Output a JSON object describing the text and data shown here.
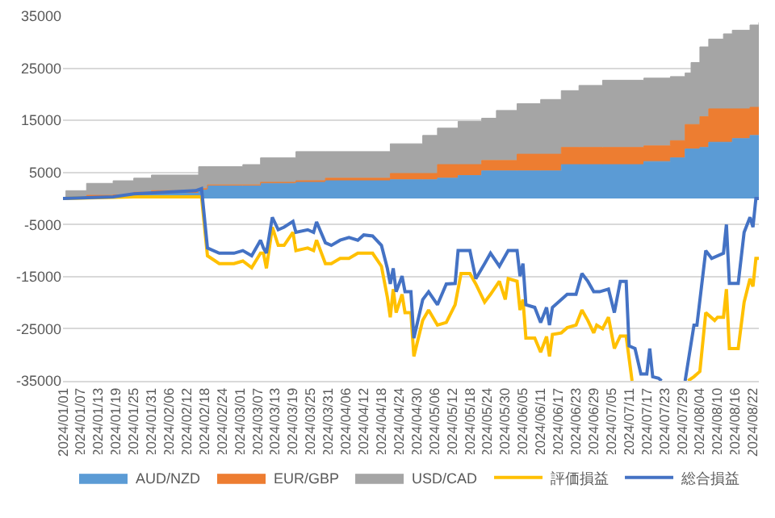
{
  "chart_data": {
    "type": "area",
    "stacked": true,
    "grid": "y",
    "legend": "bottom",
    "marker": "none",
    "line_style": "solid",
    "ylim": [
      -35000,
      35000
    ],
    "yticks": [
      -35000,
      -25000,
      -15000,
      -5000,
      5000,
      15000,
      25000,
      35000
    ],
    "xlim": [
      "2024-01-01",
      "2024-08-24"
    ],
    "xticks": [
      {
        "value": "2024-01-01",
        "label": "2024/01/01"
      },
      {
        "value": "2024-01-07",
        "label": "2024/01/07"
      },
      {
        "value": "2024-01-13",
        "label": "2024/01/13"
      },
      {
        "value": "2024-01-19",
        "label": "2024/01/19"
      },
      {
        "value": "2024-01-25",
        "label": "2024/01/25"
      },
      {
        "value": "2024-01-31",
        "label": "2024/01/31"
      },
      {
        "value": "2024-02-06",
        "label": "2024/02/06"
      },
      {
        "value": "2024-02-12",
        "label": "2024/02/12"
      },
      {
        "value": "2024-02-18",
        "label": "2024/02/18"
      },
      {
        "value": "2024-02-24",
        "label": "2024/02/24"
      },
      {
        "value": "2024-03-01",
        "label": "2024/03/01"
      },
      {
        "value": "2024-03-07",
        "label": "2024/03/07"
      },
      {
        "value": "2024-03-13",
        "label": "2024/03/13"
      },
      {
        "value": "2024-03-19",
        "label": "2024/03/19"
      },
      {
        "value": "2024-03-25",
        "label": "2024/03/25"
      },
      {
        "value": "2024-03-31",
        "label": "2024/03/31"
      },
      {
        "value": "2024-04-06",
        "label": "2024/04/06"
      },
      {
        "value": "2024-04-12",
        "label": "2024/04/12"
      },
      {
        "value": "2024-04-18",
        "label": "2024/04/18"
      },
      {
        "value": "2024-04-24",
        "label": "2024/04/24"
      },
      {
        "value": "2024-04-30",
        "label": "2024/04/30"
      },
      {
        "value": "2024-05-06",
        "label": "2024/05/06"
      },
      {
        "value": "2024-05-12",
        "label": "2024/05/12"
      },
      {
        "value": "2024-05-18",
        "label": "2024/05/18"
      },
      {
        "value": "2024-05-24",
        "label": "2024/05/24"
      },
      {
        "value": "2024-05-30",
        "label": "2024/05/30"
      },
      {
        "value": "2024-06-05",
        "label": "2024/06/05"
      },
      {
        "value": "2024-06-11",
        "label": "2024/06/11"
      },
      {
        "value": "2024-06-17",
        "label": "2024/06/17"
      },
      {
        "value": "2024-06-23",
        "label": "2024/06/23"
      },
      {
        "value": "2024-06-29",
        "label": "2024/06/29"
      },
      {
        "value": "2024-07-05",
        "label": "2024/07/05"
      },
      {
        "value": "2024-07-11",
        "label": "2024/07/11"
      },
      {
        "value": "2024-07-17",
        "label": "2024/07/17"
      },
      {
        "value": "2024-07-23",
        "label": "2024/07/23"
      },
      {
        "value": "2024-07-29",
        "label": "2024/07/29"
      },
      {
        "value": "2024-08-04",
        "label": "2024/08/04"
      },
      {
        "value": "2024-08-10",
        "label": "2024/08/10"
      },
      {
        "value": "2024-08-16",
        "label": "2024/08/16"
      },
      {
        "value": "2024-08-22",
        "label": "2024/08/22"
      }
    ],
    "x": [
      "2024-01-01",
      "2024-01-02",
      "2024-01-09",
      "2024-01-18",
      "2024-01-25",
      "2024-01-31",
      "2024-02-16",
      "2024-02-19",
      "2024-03-02",
      "2024-03-08",
      "2024-03-20",
      "2024-03-30",
      "2024-04-21",
      "2024-05-02",
      "2024-05-07",
      "2024-05-14",
      "2024-05-22",
      "2024-05-27",
      "2024-06-03",
      "2024-06-11",
      "2024-06-18",
      "2024-06-24",
      "2024-07-02",
      "2024-07-16",
      "2024-07-25",
      "2024-07-30",
      "2024-08-01",
      "2024-08-04",
      "2024-08-07",
      "2024-08-12",
      "2024-08-15",
      "2024-08-21",
      "2024-08-24"
    ],
    "series": [
      {
        "name": "AUD/NZD",
        "color": "#5b9bd5",
        "values": [
          0,
          100,
          300,
          600,
          900,
          1000,
          1600,
          2400,
          2400,
          2900,
          3100,
          3400,
          3600,
          3600,
          3900,
          4400,
          5300,
          5300,
          5300,
          5300,
          6500,
          6500,
          6500,
          7100,
          7800,
          9500,
          9500,
          9800,
          10800,
          10800,
          11500,
          12100,
          12100
        ]
      },
      {
        "name": "EUR/GBP",
        "color": "#ed7d31",
        "values": [
          0,
          0,
          300,
          100,
          300,
          500,
          300,
          200,
          200,
          200,
          300,
          500,
          1200,
          1200,
          2600,
          2100,
          2000,
          2000,
          3200,
          3200,
          3300,
          3300,
          3300,
          3000,
          3300,
          4700,
          4700,
          5900,
          6400,
          6400,
          5700,
          5400,
          5400
        ]
      },
      {
        "name": "USD/CAD",
        "color": "#a5a5a5",
        "values": [
          0,
          1400,
          2300,
          2700,
          2700,
          3000,
          4200,
          3500,
          3900,
          4700,
          5600,
          5100,
          5700,
          7300,
          7000,
          8300,
          8100,
          9600,
          9700,
          10500,
          10900,
          11900,
          12900,
          13000,
          12300,
          9900,
          11900,
          13400,
          13400,
          14400,
          15100,
          15800,
          16300
        ]
      },
      {
        "name": "評価損益",
        "type": "line",
        "color": "#ffc000",
        "x": [
          "2024-01-01",
          "2024-01-25",
          "2024-02-17",
          "2024-02-19",
          "2024-02-23",
          "2024-02-28",
          "2024-03-02",
          "2024-03-05",
          "2024-03-08",
          "2024-03-09",
          "2024-03-10",
          "2024-03-12",
          "2024-03-14",
          "2024-03-16",
          "2024-03-19",
          "2024-03-20",
          "2024-03-24",
          "2024-03-26",
          "2024-03-27",
          "2024-03-30",
          "2024-04-01",
          "2024-04-04",
          "2024-04-07",
          "2024-04-10",
          "2024-04-15",
          "2024-04-18",
          "2024-04-20",
          "2024-04-21",
          "2024-04-22",
          "2024-04-23",
          "2024-04-25",
          "2024-04-26",
          "2024-04-28",
          "2024-04-29",
          "2024-05-02",
          "2024-05-04",
          "2024-05-07",
          "2024-05-10",
          "2024-05-13",
          "2024-05-15",
          "2024-05-18",
          "2024-05-20",
          "2024-05-23",
          "2024-05-25",
          "2024-05-28",
          "2024-05-30",
          "2024-05-31",
          "2024-06-03",
          "2024-06-04",
          "2024-06-05",
          "2024-06-06",
          "2024-06-09",
          "2024-06-11",
          "2024-06-13",
          "2024-06-14",
          "2024-06-15",
          "2024-06-18",
          "2024-06-20",
          "2024-06-23",
          "2024-06-25",
          "2024-06-27",
          "2024-06-29",
          "2024-06-30",
          "2024-07-02",
          "2024-07-04",
          "2024-07-06",
          "2024-07-08",
          "2024-07-10",
          "2024-07-12",
          "2024-07-19",
          "2024-07-31",
          "2024-08-02",
          "2024-08-04",
          "2024-08-06",
          "2024-08-09",
          "2024-08-10",
          "2024-08-12",
          "2024-08-13",
          "2024-08-14",
          "2024-08-17",
          "2024-08-19",
          "2024-08-21",
          "2024-08-22",
          "2024-08-23",
          "2024-08-24"
        ],
        "values": [
          0,
          300,
          300,
          -11000,
          -12500,
          -12500,
          -12000,
          -13300,
          -10500,
          -10500,
          -13400,
          -5500,
          -9000,
          -9000,
          -6500,
          -10000,
          -9500,
          -10000,
          -8000,
          -12500,
          -12500,
          -11500,
          -11500,
          -10500,
          -10500,
          -13000,
          -18900,
          -22800,
          -17400,
          -21900,
          -18400,
          -21900,
          -21900,
          -30300,
          -23400,
          -21400,
          -24300,
          -23800,
          -20400,
          -14400,
          -14400,
          -16400,
          -19900,
          -18400,
          -15900,
          -19400,
          -15400,
          -15900,
          -21400,
          -19400,
          -26800,
          -26800,
          -29500,
          -26500,
          -30300,
          -26100,
          -25800,
          -24800,
          -24300,
          -21400,
          -23400,
          -25800,
          -24300,
          -25000,
          -22800,
          -28800,
          -26400,
          -26400,
          -35000,
          null,
          -35000,
          -34200,
          -33200,
          -21900,
          -23400,
          -22800,
          -22800,
          -17400,
          -28800,
          -28800,
          -19900,
          -15400,
          -16900,
          -11500,
          -11500
        ]
      },
      {
        "name": "総合損益",
        "type": "line",
        "color": "#4472c4",
        "x": [
          "2024-01-01",
          "2024-01-18",
          "2024-01-25",
          "2024-02-15",
          "2024-02-17",
          "2024-02-19",
          "2024-02-23",
          "2024-02-28",
          "2024-03-02",
          "2024-03-05",
          "2024-03-08",
          "2024-03-09",
          "2024-03-10",
          "2024-03-12",
          "2024-03-14",
          "2024-03-16",
          "2024-03-19",
          "2024-03-20",
          "2024-03-24",
          "2024-03-26",
          "2024-03-27",
          "2024-03-30",
          "2024-04-01",
          "2024-04-04",
          "2024-04-07",
          "2024-04-10",
          "2024-04-12",
          "2024-04-15",
          "2024-04-18",
          "2024-04-20",
          "2024-04-21",
          "2024-04-22",
          "2024-04-23",
          "2024-04-25",
          "2024-04-26",
          "2024-04-28",
          "2024-04-29",
          "2024-05-02",
          "2024-05-04",
          "2024-05-07",
          "2024-05-10",
          "2024-05-13",
          "2024-05-14",
          "2024-05-18",
          "2024-05-20",
          "2024-05-23",
          "2024-05-25",
          "2024-05-28",
          "2024-05-31",
          "2024-06-03",
          "2024-06-04",
          "2024-06-05",
          "2024-06-06",
          "2024-06-09",
          "2024-06-11",
          "2024-06-13",
          "2024-06-14",
          "2024-06-15",
          "2024-06-18",
          "2024-06-20",
          "2024-06-23",
          "2024-06-25",
          "2024-06-27",
          "2024-06-29",
          "2024-07-01",
          "2024-07-04",
          "2024-07-06",
          "2024-07-08",
          "2024-07-10",
          "2024-07-11",
          "2024-07-13",
          "2024-07-15",
          "2024-07-17",
          "2024-07-18",
          "2024-07-19",
          "2024-07-21",
          "2024-07-22",
          "2024-07-29",
          "2024-07-30",
          "2024-08-02",
          "2024-08-03",
          "2024-08-06",
          "2024-08-08",
          "2024-08-12",
          "2024-08-13",
          "2024-08-14",
          "2024-08-17",
          "2024-08-19",
          "2024-08-21",
          "2024-08-22",
          "2024-08-23",
          "2024-08-24"
        ],
        "values": [
          0,
          300,
          900,
          1500,
          1900,
          -9500,
          -10500,
          -10500,
          -10000,
          -11000,
          -8000,
          -9500,
          -10500,
          -3600,
          -6000,
          -5500,
          -4400,
          -6500,
          -6000,
          -6500,
          -4500,
          -8500,
          -9000,
          -8000,
          -7500,
          -8000,
          -7000,
          -7200,
          -9000,
          -13400,
          -16400,
          -13400,
          -17900,
          -14900,
          -17900,
          -17900,
          -26800,
          -19400,
          -17900,
          -20400,
          -16400,
          -16300,
          -10000,
          -10000,
          -15400,
          -12500,
          -10500,
          -13000,
          -10000,
          -10000,
          -14900,
          -12500,
          -20400,
          -20900,
          -23800,
          -20900,
          -24300,
          -20900,
          -19400,
          -18400,
          -18400,
          -14400,
          -15900,
          -17900,
          -17900,
          -17400,
          -21900,
          -15900,
          -15900,
          -28300,
          -28800,
          -33700,
          -33700,
          -28800,
          -34200,
          -34500,
          -35000,
          null,
          -35000,
          -24300,
          -24300,
          -10000,
          -11500,
          -10500,
          -5000,
          -16300,
          -16300,
          -6500,
          -3600,
          -5500,
          0,
          0
        ]
      }
    ]
  }
}
